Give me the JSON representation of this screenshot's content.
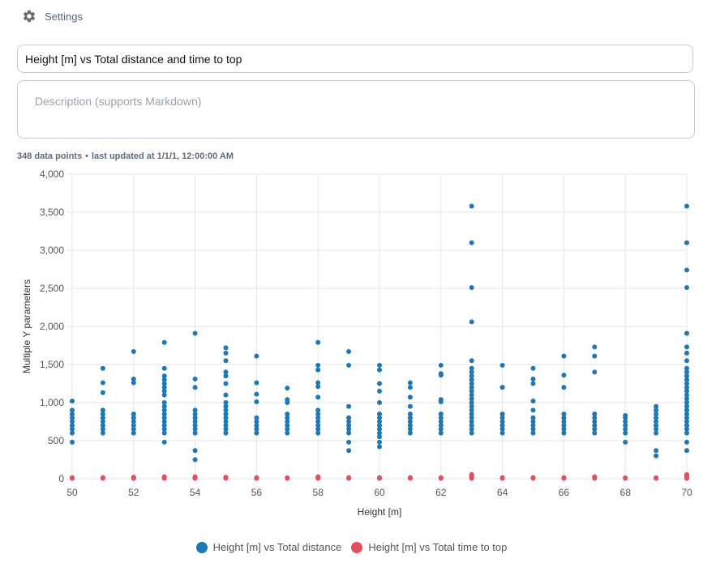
{
  "header": {
    "settings_label": "Settings",
    "settings_icon": "gear-icon"
  },
  "form": {
    "title_value": "Height [m] vs Total distance and time to top",
    "description_placeholder": "Description (supports Markdown)"
  },
  "meta": {
    "data_points": "348 data points",
    "separator": "•",
    "updated": "last updated at 1/1/1, 12:00:00 AM"
  },
  "colors": {
    "distance": "#1f77b4",
    "time": "#e0505a",
    "grid": "#e6e6e6"
  },
  "chart_data": {
    "type": "scatter",
    "xlabel": "Height [m]",
    "ylabel": "Multiple Y parameters",
    "xlim": [
      50,
      70
    ],
    "ylim": [
      0,
      4000
    ],
    "x_ticks": [
      "50",
      "52",
      "54",
      "56",
      "58",
      "60",
      "62",
      "64",
      "66",
      "68",
      "70"
    ],
    "y_ticks": [
      "0",
      "500",
      "1,000",
      "1,500",
      "2,000",
      "2,500",
      "3,000",
      "3,500",
      "4,000"
    ],
    "legend_position": "bottom",
    "grid": true,
    "series": [
      {
        "name": "Height [m] vs Total distance",
        "color": "#1f77b4",
        "points": [
          [
            50,
            480
          ],
          [
            50,
            600
          ],
          [
            50,
            650
          ],
          [
            50,
            700
          ],
          [
            50,
            750
          ],
          [
            50,
            800
          ],
          [
            50,
            850
          ],
          [
            50,
            900
          ],
          [
            50,
            1020
          ],
          [
            51,
            600
          ],
          [
            51,
            650
          ],
          [
            51,
            700
          ],
          [
            51,
            750
          ],
          [
            51,
            800
          ],
          [
            51,
            850
          ],
          [
            51,
            900
          ],
          [
            51,
            1130
          ],
          [
            51,
            1260
          ],
          [
            51,
            1450
          ],
          [
            52,
            600
          ],
          [
            52,
            650
          ],
          [
            52,
            700
          ],
          [
            52,
            750
          ],
          [
            52,
            800
          ],
          [
            52,
            850
          ],
          [
            52,
            1260
          ],
          [
            52,
            1310
          ],
          [
            52,
            1670
          ],
          [
            53,
            480
          ],
          [
            53,
            600
          ],
          [
            53,
            650
          ],
          [
            53,
            700
          ],
          [
            53,
            750
          ],
          [
            53,
            800
          ],
          [
            53,
            850
          ],
          [
            53,
            900
          ],
          [
            53,
            950
          ],
          [
            53,
            1000
          ],
          [
            53,
            1100
          ],
          [
            53,
            1150
          ],
          [
            53,
            1200
          ],
          [
            53,
            1250
          ],
          [
            53,
            1300
          ],
          [
            53,
            1350
          ],
          [
            53,
            1450
          ],
          [
            53,
            1790
          ],
          [
            54,
            250
          ],
          [
            54,
            370
          ],
          [
            54,
            600
          ],
          [
            54,
            650
          ],
          [
            54,
            700
          ],
          [
            54,
            750
          ],
          [
            54,
            800
          ],
          [
            54,
            850
          ],
          [
            54,
            900
          ],
          [
            54,
            1200
          ],
          [
            54,
            1310
          ],
          [
            54,
            1910
          ],
          [
            55,
            600
          ],
          [
            55,
            650
          ],
          [
            55,
            700
          ],
          [
            55,
            750
          ],
          [
            55,
            800
          ],
          [
            55,
            850
          ],
          [
            55,
            900
          ],
          [
            55,
            950
          ],
          [
            55,
            1000
          ],
          [
            55,
            1100
          ],
          [
            55,
            1250
          ],
          [
            55,
            1350
          ],
          [
            55,
            1400
          ],
          [
            55,
            1550
          ],
          [
            55,
            1650
          ],
          [
            55,
            1720
          ],
          [
            56,
            600
          ],
          [
            56,
            650
          ],
          [
            56,
            700
          ],
          [
            56,
            750
          ],
          [
            56,
            800
          ],
          [
            56,
            1010
          ],
          [
            56,
            1110
          ],
          [
            56,
            1260
          ],
          [
            56,
            1610
          ],
          [
            57,
            600
          ],
          [
            57,
            650
          ],
          [
            57,
            700
          ],
          [
            57,
            750
          ],
          [
            57,
            800
          ],
          [
            57,
            850
          ],
          [
            57,
            1000
          ],
          [
            57,
            1040
          ],
          [
            57,
            1190
          ],
          [
            58,
            600
          ],
          [
            58,
            650
          ],
          [
            58,
            700
          ],
          [
            58,
            750
          ],
          [
            58,
            800
          ],
          [
            58,
            850
          ],
          [
            58,
            900
          ],
          [
            58,
            1070
          ],
          [
            58,
            1210
          ],
          [
            58,
            1260
          ],
          [
            58,
            1430
          ],
          [
            58,
            1490
          ],
          [
            58,
            1790
          ],
          [
            59,
            370
          ],
          [
            59,
            480
          ],
          [
            59,
            600
          ],
          [
            59,
            650
          ],
          [
            59,
            700
          ],
          [
            59,
            750
          ],
          [
            59,
            800
          ],
          [
            59,
            950
          ],
          [
            59,
            1490
          ],
          [
            59,
            1670
          ],
          [
            60,
            420
          ],
          [
            60,
            480
          ],
          [
            60,
            550
          ],
          [
            60,
            600
          ],
          [
            60,
            650
          ],
          [
            60,
            700
          ],
          [
            60,
            750
          ],
          [
            60,
            800
          ],
          [
            60,
            850
          ],
          [
            60,
            1000
          ],
          [
            60,
            1150
          ],
          [
            60,
            1250
          ],
          [
            60,
            1430
          ],
          [
            60,
            1490
          ],
          [
            61,
            600
          ],
          [
            61,
            650
          ],
          [
            61,
            700
          ],
          [
            61,
            750
          ],
          [
            61,
            800
          ],
          [
            61,
            850
          ],
          [
            61,
            950
          ],
          [
            61,
            1070
          ],
          [
            61,
            1200
          ],
          [
            61,
            1260
          ],
          [
            62,
            600
          ],
          [
            62,
            650
          ],
          [
            62,
            700
          ],
          [
            62,
            750
          ],
          [
            62,
            800
          ],
          [
            62,
            850
          ],
          [
            62,
            1010
          ],
          [
            62,
            1040
          ],
          [
            62,
            1360
          ],
          [
            62,
            1380
          ],
          [
            62,
            1490
          ],
          [
            63,
            600
          ],
          [
            63,
            650
          ],
          [
            63,
            700
          ],
          [
            63,
            750
          ],
          [
            63,
            800
          ],
          [
            63,
            850
          ],
          [
            63,
            900
          ],
          [
            63,
            950
          ],
          [
            63,
            1000
          ],
          [
            63,
            1050
          ],
          [
            63,
            1100
          ],
          [
            63,
            1150
          ],
          [
            63,
            1200
          ],
          [
            63,
            1250
          ],
          [
            63,
            1300
          ],
          [
            63,
            1350
          ],
          [
            63,
            1400
          ],
          [
            63,
            1450
          ],
          [
            63,
            1550
          ],
          [
            63,
            2060
          ],
          [
            63,
            2510
          ],
          [
            63,
            3100
          ],
          [
            63,
            3580
          ],
          [
            64,
            600
          ],
          [
            64,
            650
          ],
          [
            64,
            700
          ],
          [
            64,
            750
          ],
          [
            64,
            800
          ],
          [
            64,
            850
          ],
          [
            64,
            1200
          ],
          [
            64,
            1490
          ],
          [
            65,
            600
          ],
          [
            65,
            650
          ],
          [
            65,
            700
          ],
          [
            65,
            750
          ],
          [
            65,
            800
          ],
          [
            65,
            900
          ],
          [
            65,
            1020
          ],
          [
            65,
            1250
          ],
          [
            65,
            1310
          ],
          [
            65,
            1450
          ],
          [
            66,
            600
          ],
          [
            66,
            650
          ],
          [
            66,
            700
          ],
          [
            66,
            750
          ],
          [
            66,
            800
          ],
          [
            66,
            850
          ],
          [
            66,
            1200
          ],
          [
            66,
            1360
          ],
          [
            66,
            1610
          ],
          [
            67,
            600
          ],
          [
            67,
            650
          ],
          [
            67,
            700
          ],
          [
            67,
            750
          ],
          [
            67,
            800
          ],
          [
            67,
            850
          ],
          [
            67,
            1400
          ],
          [
            67,
            1610
          ],
          [
            67,
            1730
          ],
          [
            68,
            480
          ],
          [
            68,
            600
          ],
          [
            68,
            650
          ],
          [
            68,
            700
          ],
          [
            68,
            750
          ],
          [
            68,
            800
          ],
          [
            68,
            830
          ],
          [
            69,
            300
          ],
          [
            69,
            370
          ],
          [
            69,
            600
          ],
          [
            69,
            650
          ],
          [
            69,
            700
          ],
          [
            69,
            750
          ],
          [
            69,
            800
          ],
          [
            69,
            850
          ],
          [
            69,
            900
          ],
          [
            69,
            950
          ],
          [
            70,
            370
          ],
          [
            70,
            480
          ],
          [
            70,
            600
          ],
          [
            70,
            650
          ],
          [
            70,
            700
          ],
          [
            70,
            750
          ],
          [
            70,
            800
          ],
          [
            70,
            850
          ],
          [
            70,
            900
          ],
          [
            70,
            950
          ],
          [
            70,
            1000
          ],
          [
            70,
            1050
          ],
          [
            70,
            1100
          ],
          [
            70,
            1150
          ],
          [
            70,
            1200
          ],
          [
            70,
            1250
          ],
          [
            70,
            1300
          ],
          [
            70,
            1350
          ],
          [
            70,
            1400
          ],
          [
            70,
            1450
          ],
          [
            70,
            1550
          ],
          [
            70,
            1650
          ],
          [
            70,
            1730
          ],
          [
            70,
            1910
          ],
          [
            70,
            2510
          ],
          [
            70,
            2740
          ],
          [
            70,
            3100
          ],
          [
            70,
            3580
          ]
        ]
      },
      {
        "name": "Height [m] vs Total time to top",
        "color": "#e0505a",
        "points": [
          [
            50,
            5
          ],
          [
            50,
            15
          ],
          [
            51,
            5
          ],
          [
            51,
            15
          ],
          [
            52,
            5
          ],
          [
            52,
            12
          ],
          [
            52,
            20
          ],
          [
            53,
            5
          ],
          [
            53,
            15
          ],
          [
            53,
            25
          ],
          [
            54,
            5
          ],
          [
            54,
            15
          ],
          [
            54,
            25
          ],
          [
            55,
            5
          ],
          [
            55,
            15
          ],
          [
            55,
            20
          ],
          [
            56,
            5
          ],
          [
            56,
            15
          ],
          [
            57,
            5
          ],
          [
            57,
            12
          ],
          [
            58,
            5
          ],
          [
            58,
            15
          ],
          [
            58,
            25
          ],
          [
            59,
            5
          ],
          [
            59,
            15
          ],
          [
            60,
            5
          ],
          [
            60,
            15
          ],
          [
            61,
            5
          ],
          [
            61,
            15
          ],
          [
            62,
            5
          ],
          [
            62,
            15
          ],
          [
            63,
            5
          ],
          [
            63,
            15
          ],
          [
            63,
            30
          ],
          [
            63,
            45
          ],
          [
            63,
            55
          ],
          [
            64,
            5
          ],
          [
            64,
            15
          ],
          [
            65,
            5
          ],
          [
            65,
            15
          ],
          [
            66,
            5
          ],
          [
            66,
            15
          ],
          [
            67,
            5
          ],
          [
            67,
            15
          ],
          [
            67,
            25
          ],
          [
            68,
            5
          ],
          [
            68,
            12
          ],
          [
            69,
            5
          ],
          [
            69,
            12
          ],
          [
            70,
            5
          ],
          [
            70,
            15
          ],
          [
            70,
            30
          ],
          [
            70,
            45
          ],
          [
            70,
            55
          ]
        ]
      }
    ]
  }
}
